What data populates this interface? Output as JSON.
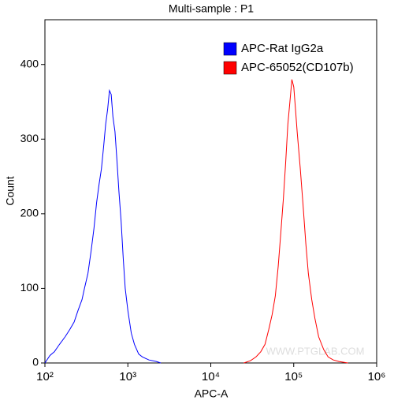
{
  "chart_data": {
    "type": "line",
    "title": "Multi-sample : P1",
    "x_label": "APC-A",
    "y_label": "Count",
    "log_x": true,
    "xlim": [
      100,
      1000000
    ],
    "xticks": [
      {
        "value": 100,
        "label": "10²"
      },
      {
        "value": 1000,
        "label": "10³"
      },
      {
        "value": 10000,
        "label": "10⁴"
      },
      {
        "value": 100000,
        "label": "10⁵"
      },
      {
        "value": 1000000,
        "label": "10⁶"
      }
    ],
    "ylim": [
      0,
      460
    ],
    "yticks": [
      0,
      100,
      200,
      300,
      400
    ],
    "legend": "upper right",
    "watermark": "WWW.PTGLAB.COM",
    "series": [
      {
        "name": "APC-Rat IgG2a",
        "color": "#0000ff",
        "x": [
          100,
          115,
          130,
          150,
          175,
          200,
          225,
          250,
          280,
          300,
          330,
          360,
          390,
          420,
          450,
          480,
          510,
          540,
          570,
          600,
          630,
          660,
          700,
          740,
          780,
          830,
          880,
          930,
          1000,
          1100,
          1200,
          1350,
          1500,
          1800,
          2200,
          2500
        ],
        "values": [
          0,
          10,
          15,
          25,
          35,
          45,
          55,
          70,
          85,
          100,
          120,
          150,
          180,
          215,
          240,
          260,
          290,
          320,
          340,
          365,
          360,
          330,
          310,
          270,
          230,
          190,
          140,
          100,
          70,
          40,
          25,
          12,
          8,
          4,
          2,
          0
        ]
      },
      {
        "name": "APC-65052(CD107b)",
        "color": "#ff0000",
        "x": [
          25000,
          30000,
          35000,
          40000,
          45000,
          50000,
          55000,
          60000,
          65000,
          70000,
          75000,
          80000,
          85000,
          90000,
          95000,
          100000,
          105000,
          110000,
          120000,
          130000,
          140000,
          150000,
          165000,
          180000,
          200000,
          230000,
          260000,
          300000,
          350000,
          450000
        ],
        "values": [
          0,
          3,
          8,
          15,
          25,
          45,
          65,
          90,
          130,
          175,
          220,
          270,
          320,
          350,
          380,
          370,
          340,
          310,
          260,
          210,
          160,
          120,
          85,
          60,
          35,
          18,
          8,
          4,
          2,
          0
        ]
      }
    ]
  }
}
